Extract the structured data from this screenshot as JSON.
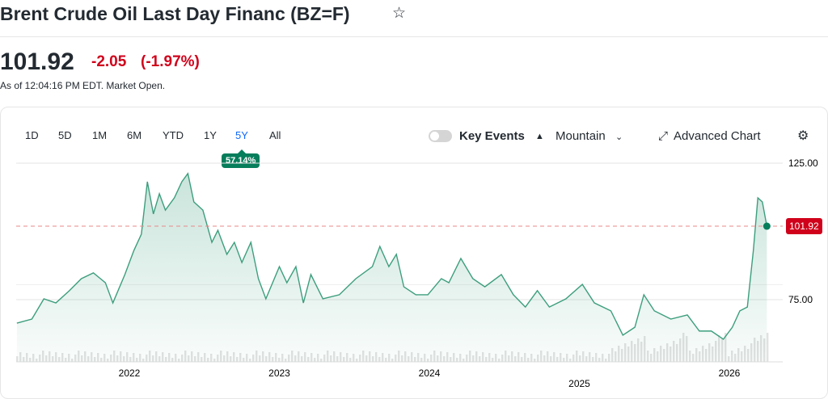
{
  "header": {
    "title": "Brent Crude Oil Last Day Financ (BZ=F)",
    "star_icon": "star-icon"
  },
  "quote": {
    "price": "101.92",
    "change": "-2.05",
    "change_pct": "(-1.97%)",
    "as_of": "As of 12:04:16 PM EDT. Market Open."
  },
  "ranges": [
    "1D",
    "5D",
    "1M",
    "6M",
    "YTD",
    "1Y",
    "5Y",
    "All"
  ],
  "selected_range": "5Y",
  "range_return": "57.14%",
  "toolbar": {
    "key_events": "Key Events",
    "chart_type": "Mountain",
    "advanced": "Advanced Chart"
  },
  "colors": {
    "line": "#3d9e7e",
    "negative": "#d0021b",
    "positive": "#077e5b",
    "accent": "#0f69ff"
  },
  "chart_data": {
    "type": "area",
    "title": "Brent Crude Oil Last Day Financ (BZ=F) 5Y",
    "xlabel": "",
    "ylabel": "",
    "ylim": [
      55,
      130
    ],
    "yticks": [
      "125.00",
      "75.00"
    ],
    "ytick_values": [
      125,
      75
    ],
    "xticks": [
      "2022",
      "2023",
      "2024",
      "2025",
      "2026"
    ],
    "last_value_label": "101.92",
    "last_value": 101.92,
    "x": [
      2021.25,
      2021.35,
      2021.43,
      2021.51,
      2021.6,
      2021.68,
      2021.76,
      2021.84,
      2021.89,
      2021.97,
      2022.03,
      2022.08,
      2022.12,
      2022.16,
      2022.2,
      2022.24,
      2022.3,
      2022.35,
      2022.39,
      2022.43,
      2022.49,
      2022.55,
      2022.59,
      2022.65,
      2022.7,
      2022.75,
      2022.81,
      2022.86,
      2022.91,
      2023.0,
      2023.05,
      2023.11,
      2023.16,
      2023.21,
      2023.29,
      2023.4,
      2023.51,
      2023.62,
      2023.67,
      2023.73,
      2023.78,
      2023.83,
      2023.91,
      2023.99,
      2024.08,
      2024.13,
      2024.21,
      2024.29,
      2024.37,
      2024.48,
      2024.56,
      2024.64,
      2024.72,
      2024.8,
      2024.91,
      2025.02,
      2025.1,
      2025.21,
      2025.29,
      2025.37,
      2025.43,
      2025.5,
      2025.61,
      2025.72,
      2025.8,
      2025.88,
      2025.96,
      2026.02,
      2026.07,
      2026.12,
      2026.16,
      2026.19,
      2026.22,
      2026.25
    ],
    "values": [
      66.4,
      67.9,
      75.3,
      73.8,
      78.3,
      82.7,
      84.8,
      81.2,
      73.8,
      84.2,
      93.0,
      99.0,
      118.2,
      106.4,
      113.8,
      107.8,
      112.3,
      118.2,
      121.2,
      110.8,
      107.8,
      96.0,
      100.4,
      91.6,
      96.0,
      88.6,
      96.0,
      82.7,
      75.3,
      87.1,
      81.2,
      87.1,
      73.8,
      84.2,
      75.3,
      76.8,
      82.7,
      87.1,
      94.5,
      87.1,
      91.6,
      79.7,
      76.8,
      76.8,
      82.7,
      81.2,
      90.1,
      82.7,
      79.7,
      84.2,
      76.8,
      72.3,
      78.3,
      72.3,
      75.3,
      80.6,
      73.8,
      70.9,
      62.0,
      64.9,
      76.8,
      70.9,
      67.9,
      69.4,
      63.5,
      63.5,
      60.5,
      64.9,
      70.9,
      72.3,
      93.0,
      112.3,
      110.8,
      101.92
    ]
  }
}
